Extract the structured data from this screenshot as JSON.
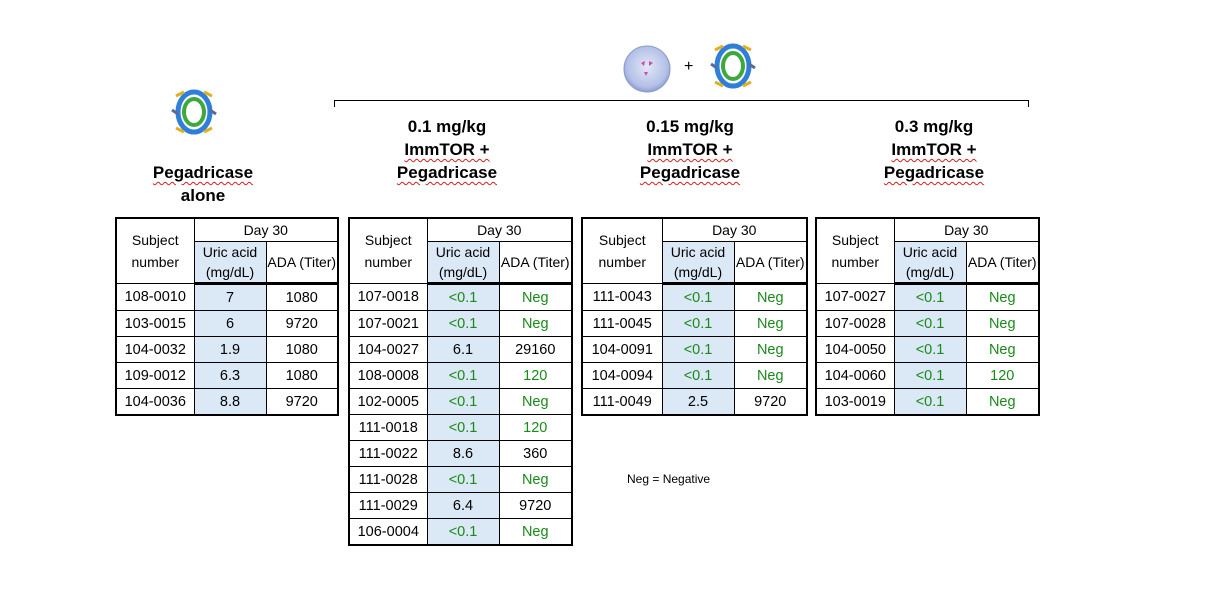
{
  "headers": {
    "alone": [
      "Pegadricase",
      "alone"
    ],
    "g1": [
      "0.1 mg/kg",
      "ImmTOR +",
      "Pegadricase"
    ],
    "g2": [
      "0.15 mg/kg",
      "ImmTOR +",
      "Pegadricase"
    ],
    "g3": [
      "0.3 mg/kg",
      "ImmTOR +",
      "Pegadricase"
    ]
  },
  "plus_sign": "+",
  "table_labels": {
    "subject": "Subject number",
    "day": "Day 30",
    "uric": "Uric acid (mg/dL)",
    "ada": "ADA (Titer)"
  },
  "tables": [
    {
      "rows": [
        [
          "108-0010",
          "7",
          "1080"
        ],
        [
          "103-0015",
          "6",
          "9720"
        ],
        [
          "104-0032",
          "1.9",
          "1080"
        ],
        [
          "109-0012",
          "6.3",
          "1080"
        ],
        [
          "104-0036",
          "8.8",
          "9720"
        ]
      ]
    },
    {
      "rows": [
        [
          "107-0018",
          "<0.1",
          "Neg"
        ],
        [
          "107-0021",
          "<0.1",
          "Neg"
        ],
        [
          "104-0027",
          "6.1",
          "29160"
        ],
        [
          "108-0008",
          "<0.1",
          "120"
        ],
        [
          "102-0005",
          "<0.1",
          "Neg"
        ],
        [
          "111-0018",
          "<0.1",
          "120"
        ],
        [
          "111-0022",
          "8.6",
          "360"
        ],
        [
          "111-0028",
          "<0.1",
          "Neg"
        ],
        [
          "111-0029",
          "6.4",
          "9720"
        ],
        [
          "106-0004",
          "<0.1",
          "Neg"
        ]
      ]
    },
    {
      "rows": [
        [
          "111-0043",
          "<0.1",
          "Neg"
        ],
        [
          "111-0045",
          "<0.1",
          "Neg"
        ],
        [
          "104-0091",
          "<0.1",
          "Neg"
        ],
        [
          "104-0094",
          "<0.1",
          "Neg"
        ],
        [
          "111-0049",
          "2.5",
          "9720"
        ]
      ]
    },
    {
      "rows": [
        [
          "107-0027",
          "<0.1",
          "Neg"
        ],
        [
          "107-0028",
          "<0.1",
          "Neg"
        ],
        [
          "104-0050",
          "<0.1",
          "Neg"
        ],
        [
          "104-0060",
          "<0.1",
          "120"
        ],
        [
          "103-0019",
          "<0.1",
          "Neg"
        ]
      ]
    }
  ],
  "footnote": "Neg = Negative",
  "colors": {
    "responder_text": "#1a8a1a",
    "uric_fill": "#dbe8f5",
    "nanoparticle": "#b9c6ea",
    "nanoparticle_dots": "#d24aa8"
  },
  "icons": [
    "protein-structure-icon",
    "nanoparticle-icon"
  ]
}
